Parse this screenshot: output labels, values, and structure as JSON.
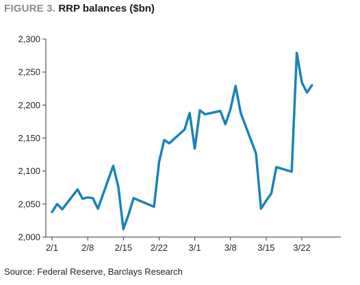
{
  "figure": {
    "label": "FIGURE 3.",
    "title": "RRP balances ($bn)",
    "source": "Source: Federal Reserve, Barclays Research"
  },
  "chart_data": {
    "type": "line",
    "title": "RRP balances ($bn)",
    "xlabel": "",
    "ylabel": "",
    "ylim": [
      2000,
      2300
    ],
    "yticks": [
      2000,
      2050,
      2100,
      2150,
      2200,
      2250,
      2300
    ],
    "ytick_labels": [
      "2,000",
      "2,050",
      "2,100",
      "2,150",
      "2,200",
      "2,250",
      "2,300"
    ],
    "xticks": [
      "2/1",
      "2/8",
      "2/15",
      "2/22",
      "3/1",
      "3/8",
      "3/15",
      "3/22"
    ],
    "grid": false,
    "line_color": "#1a82b8",
    "series": [
      {
        "x": [
          "2/1",
          "2/2",
          "2/3",
          "2/6",
          "2/7",
          "2/8",
          "2/9",
          "2/10",
          "2/13",
          "2/14",
          "2/15",
          "2/16",
          "2/17",
          "2/21",
          "2/22",
          "2/23",
          "2/24",
          "2/27",
          "2/28",
          "3/1",
          "3/2",
          "3/3",
          "3/6",
          "3/7",
          "3/8",
          "3/9",
          "3/10",
          "3/13",
          "3/14",
          "3/15",
          "3/16",
          "3/17",
          "3/20",
          "3/21",
          "3/22",
          "3/23",
          "3/24"
        ],
        "values": [
          2038,
          2050,
          2042,
          2072,
          2058,
          2060,
          2059,
          2043,
          2108,
          2076,
          2012,
          2034,
          2059,
          2046,
          2114,
          2147,
          2142,
          2163,
          2188,
          2134,
          2192,
          2186,
          2191,
          2171,
          2194,
          2229,
          2188,
          2127,
          2043,
          2055,
          2066,
          2106,
          2099,
          2279,
          2234,
          2219,
          2230
        ]
      }
    ]
  }
}
